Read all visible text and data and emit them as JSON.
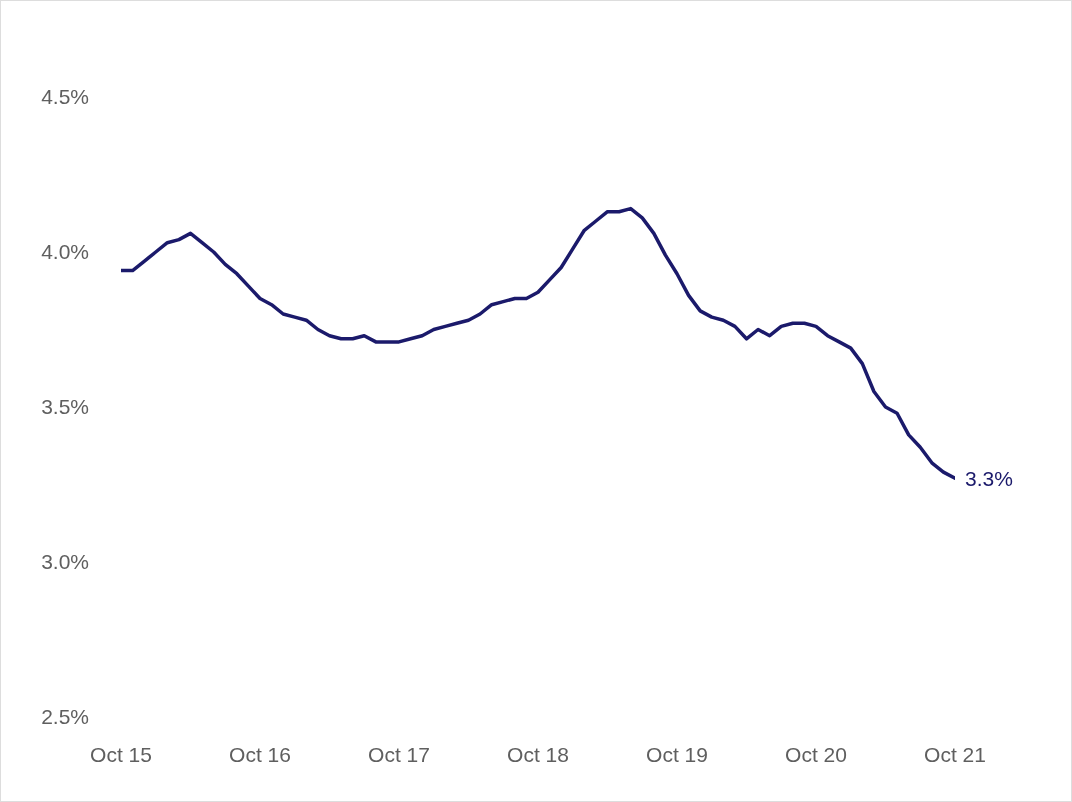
{
  "chart_data": {
    "type": "line",
    "x": [
      "2015-10",
      "2015-11",
      "2015-12",
      "2016-01",
      "2016-02",
      "2016-03",
      "2016-04",
      "2016-05",
      "2016-06",
      "2016-07",
      "2016-08",
      "2016-09",
      "2016-10",
      "2016-11",
      "2016-12",
      "2017-01",
      "2017-02",
      "2017-03",
      "2017-04",
      "2017-05",
      "2017-06",
      "2017-07",
      "2017-08",
      "2017-09",
      "2017-10",
      "2017-11",
      "2017-12",
      "2018-01",
      "2018-02",
      "2018-03",
      "2018-04",
      "2018-05",
      "2018-06",
      "2018-07",
      "2018-08",
      "2018-09",
      "2018-10",
      "2018-11",
      "2018-12",
      "2019-01",
      "2019-02",
      "2019-03",
      "2019-04",
      "2019-05",
      "2019-06",
      "2019-07",
      "2019-08",
      "2019-09",
      "2019-10",
      "2019-11",
      "2019-12",
      "2020-01",
      "2020-02",
      "2020-03",
      "2020-04",
      "2020-05",
      "2020-06",
      "2020-07",
      "2020-08",
      "2020-09",
      "2020-10",
      "2020-11",
      "2020-12",
      "2021-01",
      "2021-02",
      "2021-03",
      "2021-04",
      "2021-05",
      "2021-06",
      "2021-07",
      "2021-08",
      "2021-09",
      "2021-10"
    ],
    "series": [
      {
        "color": "#1b1a6b",
        "values": [
          3.94,
          3.94,
          3.97,
          4.0,
          4.03,
          4.04,
          4.06,
          4.03,
          4.0,
          3.96,
          3.93,
          3.89,
          3.85,
          3.83,
          3.8,
          3.79,
          3.78,
          3.75,
          3.73,
          3.72,
          3.72,
          3.73,
          3.71,
          3.71,
          3.71,
          3.72,
          3.73,
          3.75,
          3.76,
          3.77,
          3.78,
          3.8,
          3.83,
          3.84,
          3.85,
          3.85,
          3.87,
          3.91,
          3.95,
          4.01,
          4.07,
          4.1,
          4.13,
          4.13,
          4.14,
          4.11,
          4.06,
          3.99,
          3.93,
          3.86,
          3.81,
          3.79,
          3.78,
          3.76,
          3.72,
          3.75,
          3.73,
          3.76,
          3.77,
          3.77,
          3.76,
          3.73,
          3.71,
          3.69,
          3.64,
          3.55,
          3.5,
          3.48,
          3.41,
          3.37,
          3.32,
          3.29,
          3.27
        ]
      }
    ],
    "xlim": [
      "2015-10",
      "2021-10"
    ],
    "xticks": [
      {
        "value": "2015-10",
        "label": "Oct 15"
      },
      {
        "value": "2016-10",
        "label": "Oct 16"
      },
      {
        "value": "2017-10",
        "label": "Oct 17"
      },
      {
        "value": "2018-10",
        "label": "Oct 18"
      },
      {
        "value": "2019-10",
        "label": "Oct 19"
      },
      {
        "value": "2020-10",
        "label": "Oct 20"
      },
      {
        "value": "2021-10",
        "label": "Oct 21"
      }
    ],
    "ylim": [
      2.5,
      4.5
    ],
    "yticks": [
      {
        "value": 2.5,
        "label": "2.5%"
      },
      {
        "value": 3.0,
        "label": "3.0%"
      },
      {
        "value": 3.5,
        "label": "3.5%"
      },
      {
        "value": 4.0,
        "label": "4.0%"
      },
      {
        "value": 4.5,
        "label": "4.5%"
      }
    ],
    "annotations": [
      {
        "text": "3.3%",
        "x": "2021-10",
        "y": 3.27
      }
    ]
  }
}
